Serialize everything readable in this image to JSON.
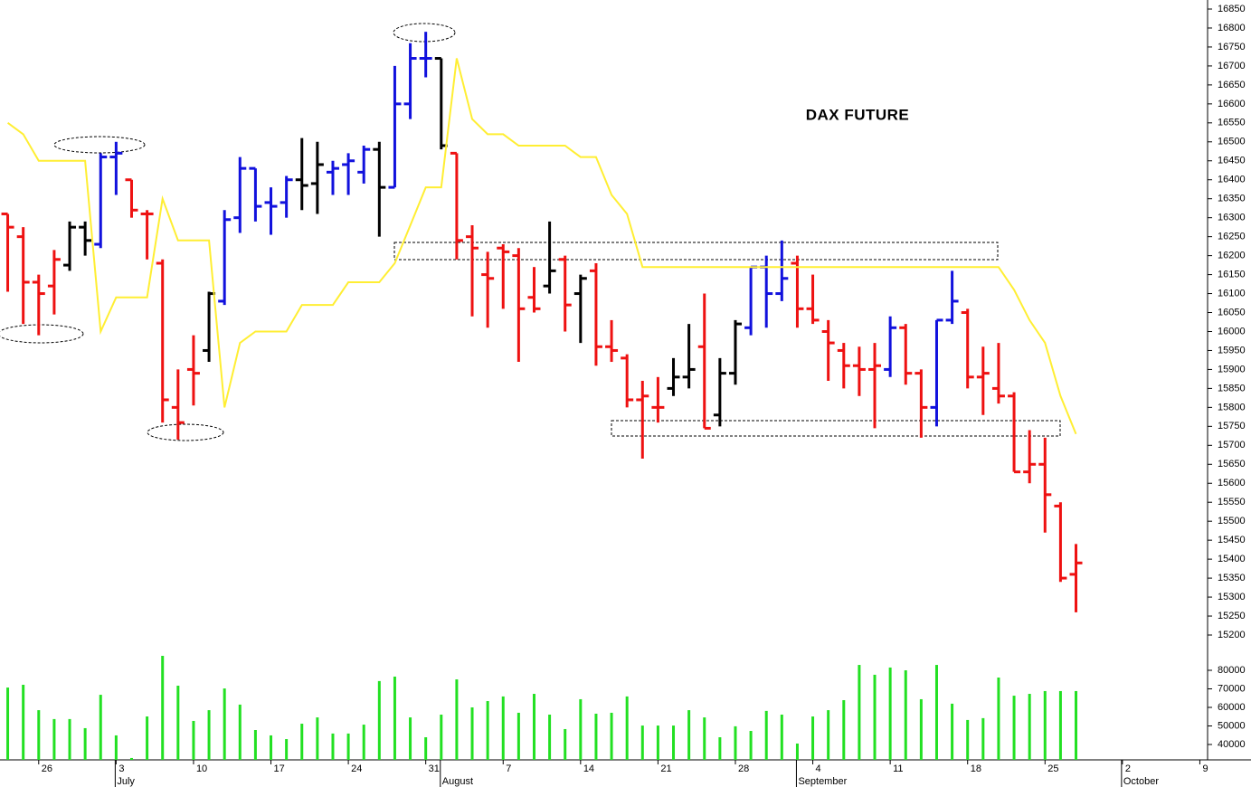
{
  "chart_data": [
    {
      "type": "ohlc",
      "title": "DAX FUTURE",
      "open": [
        16310,
        16250,
        16130,
        16120,
        16175,
        16275,
        16230,
        16460,
        16400,
        16310,
        16180,
        15800,
        15900,
        15950,
        16080,
        16300,
        16430,
        16340,
        16340,
        16400,
        16390,
        16420,
        16440,
        16420,
        16480,
        16380,
        16600,
        16720,
        16720,
        16470,
        16250,
        16150,
        16220,
        16200,
        16090,
        16120,
        16190,
        16100,
        16160,
        15960,
        15930,
        15820,
        15800,
        15850,
        15880,
        15960,
        15780,
        15890,
        16010,
        16170,
        16100,
        16180,
        16060,
        16000,
        15950,
        15910,
        15900,
        15900,
        16010,
        15890,
        15800,
        16030,
        16050,
        15880,
        15850,
        15830,
        15630,
        15650,
        15540,
        15360
      ],
      "high": [
        16310,
        16275,
        16150,
        16215,
        16290,
        16290,
        16470,
        16500,
        16400,
        16320,
        16190,
        15900,
        15990,
        16105,
        16320,
        16460,
        16430,
        16380,
        16410,
        16510,
        16500,
        16450,
        16470,
        16490,
        16500,
        16700,
        16760,
        16790,
        16720,
        16470,
        16280,
        16210,
        16230,
        16220,
        16170,
        16290,
        16200,
        16150,
        16180,
        16030,
        15940,
        15870,
        15880,
        15930,
        16020,
        16100,
        15930,
        16030,
        16170,
        16200,
        16240,
        16200,
        16150,
        16030,
        15970,
        15960,
        15970,
        16040,
        16020,
        15900,
        16030,
        16160,
        16060,
        15960,
        15970,
        15840,
        15740,
        15720,
        15550,
        15440
      ],
      "low": [
        16105,
        16020,
        15990,
        16045,
        16160,
        16200,
        16220,
        16360,
        16300,
        16190,
        15760,
        15715,
        15805,
        15920,
        16070,
        16260,
        16290,
        16255,
        16300,
        16320,
        16310,
        16360,
        16360,
        16390,
        16250,
        16380,
        16560,
        16670,
        16480,
        16190,
        16040,
        16010,
        16060,
        15920,
        16050,
        16100,
        16000,
        15970,
        15910,
        15920,
        15800,
        15665,
        15760,
        15830,
        15850,
        15745,
        15750,
        15860,
        15990,
        16010,
        16080,
        16010,
        16020,
        15870,
        15850,
        15830,
        15745,
        15880,
        15860,
        15720,
        15750,
        16020,
        15850,
        15780,
        15810,
        15630,
        15600,
        15470,
        15340,
        15260
      ],
      "close": [
        16275,
        16130,
        16100,
        16190,
        16275,
        16240,
        16460,
        16470,
        16320,
        16310,
        15820,
        15760,
        15890,
        16100,
        16295,
        16430,
        16330,
        16330,
        16400,
        16385,
        16440,
        16430,
        16450,
        16480,
        16380,
        16600,
        16720,
        16720,
        16490,
        16240,
        16220,
        16140,
        16210,
        16060,
        16060,
        16160,
        16070,
        16140,
        15960,
        15950,
        15820,
        15830,
        15800,
        15880,
        15900,
        15745,
        15890,
        16020,
        16170,
        16100,
        16140,
        16060,
        16030,
        15970,
        15910,
        15900,
        15910,
        16010,
        15890,
        15800,
        16030,
        16080,
        15880,
        15890,
        15830,
        15630,
        15650,
        15570,
        15350,
        15390
      ],
      "colors": [
        "#ee1111",
        "#ee1111",
        "#ee1111",
        "#ee1111",
        "#000000",
        "#000000",
        "#1111dd",
        "#1111dd",
        "#ee1111",
        "#ee1111",
        "#ee1111",
        "#ee1111",
        "#ee1111",
        "#000000",
        "#1111dd",
        "#1111dd",
        "#1111dd",
        "#1111dd",
        "#1111dd",
        "#000000",
        "#000000",
        "#1111dd",
        "#1111dd",
        "#1111dd",
        "#000000",
        "#1111dd",
        "#1111dd",
        "#1111dd",
        "#000000",
        "#ee1111",
        "#ee1111",
        "#ee1111",
        "#ee1111",
        "#ee1111",
        "#ee1111",
        "#000000",
        "#ee1111",
        "#000000",
        "#ee1111",
        "#ee1111",
        "#ee1111",
        "#ee1111",
        "#ee1111",
        "#000000",
        "#000000",
        "#ee1111",
        "#000000",
        "#000000",
        "#1111dd",
        "#1111dd",
        "#1111dd",
        "#ee1111",
        "#ee1111",
        "#ee1111",
        "#ee1111",
        "#ee1111",
        "#ee1111",
        "#1111dd",
        "#ee1111",
        "#ee1111",
        "#1111dd",
        "#1111dd",
        "#ee1111",
        "#ee1111",
        "#ee1111",
        "#ee1111",
        "#ee1111",
        "#ee1111",
        "#ee1111",
        "#ee1111"
      ],
      "series": [
        {
          "color": "#ffee33",
          "values": [
            16550,
            16520,
            16450,
            16450,
            16450,
            16450,
            16000,
            16090,
            16090,
            16090,
            16350,
            16240,
            16240,
            16240,
            15800,
            15970,
            16000,
            16000,
            16000,
            16070,
            16070,
            16070,
            16130,
            16130,
            16130,
            16180,
            16280,
            16380,
            16380,
            16720,
            16560,
            16520,
            16520,
            16490,
            16490,
            16490,
            16490,
            16460,
            16460,
            16360,
            16310,
            16170,
            16170,
            16170,
            16170,
            16170,
            16170,
            16170,
            16170,
            16170,
            16170,
            16170,
            16170,
            16170,
            16170,
            16170,
            16170,
            16170,
            16170,
            16170,
            16170,
            16170,
            16170,
            16170,
            16170,
            16110,
            16030,
            15970,
            15830,
            15730
          ]
        }
      ],
      "xlim": [
        -0.5,
        77.5
      ],
      "xticks": [
        {
          "value": 2,
          "label": "26"
        },
        {
          "value": 7,
          "label": "3"
        },
        {
          "value": 12,
          "label": "10"
        },
        {
          "value": 17,
          "label": "17"
        },
        {
          "value": 22,
          "label": "24"
        },
        {
          "value": 27,
          "label": "31"
        },
        {
          "value": 32,
          "label": "7"
        },
        {
          "value": 37,
          "label": "14"
        },
        {
          "value": 42,
          "label": "21"
        },
        {
          "value": 47,
          "label": "28"
        },
        {
          "value": 52,
          "label": "4"
        },
        {
          "value": 57,
          "label": "11"
        },
        {
          "value": 62,
          "label": "18"
        },
        {
          "value": 67,
          "label": "25"
        },
        {
          "value": 72,
          "label": "2"
        },
        {
          "value": 77,
          "label": "9"
        }
      ],
      "month_labels": [
        {
          "value": 7,
          "label": "July"
        },
        {
          "value": 28,
          "label": "August"
        },
        {
          "value": 51,
          "label": "September"
        },
        {
          "value": 72,
          "label": "October"
        }
      ],
      "ylim": [
        15200,
        16850
      ],
      "yticks": [
        15200,
        15250,
        15300,
        15350,
        15400,
        15450,
        15500,
        15550,
        15600,
        15650,
        15700,
        15750,
        15800,
        15850,
        15900,
        15950,
        16000,
        16050,
        16100,
        16150,
        16200,
        16250,
        16300,
        16350,
        16400,
        16450,
        16500,
        16550,
        16600,
        16650,
        16700,
        16750,
        16800,
        16850
      ]
    },
    {
      "type": "bar",
      "color": "#22e022",
      "values": [
        70700,
        72200,
        58500,
        53700,
        53700,
        48800,
        66800,
        44900,
        32700,
        55100,
        87800,
        71700,
        52700,
        58500,
        70200,
        61500,
        47800,
        44900,
        42900,
        51200,
        54600,
        45900,
        45900,
        50700,
        74200,
        76600,
        54600,
        43900,
        56100,
        75100,
        60000,
        63400,
        65900,
        57100,
        67300,
        56100,
        48300,
        64400,
        56600,
        57100,
        65900,
        50200,
        50200,
        50200,
        58500,
        54600,
        43900,
        49800,
        47300,
        58100,
        56100,
        40500,
        55100,
        58500,
        63900,
        82900,
        77600,
        81500,
        80000,
        64400,
        82900,
        62000,
        53200,
        54200,
        76100,
        66300,
        67300,
        68800,
        68800,
        68800
      ],
      "ylim": [
        31700,
        90000
      ],
      "yticks": [
        40000,
        50000,
        60000,
        70000,
        80000
      ]
    }
  ]
}
